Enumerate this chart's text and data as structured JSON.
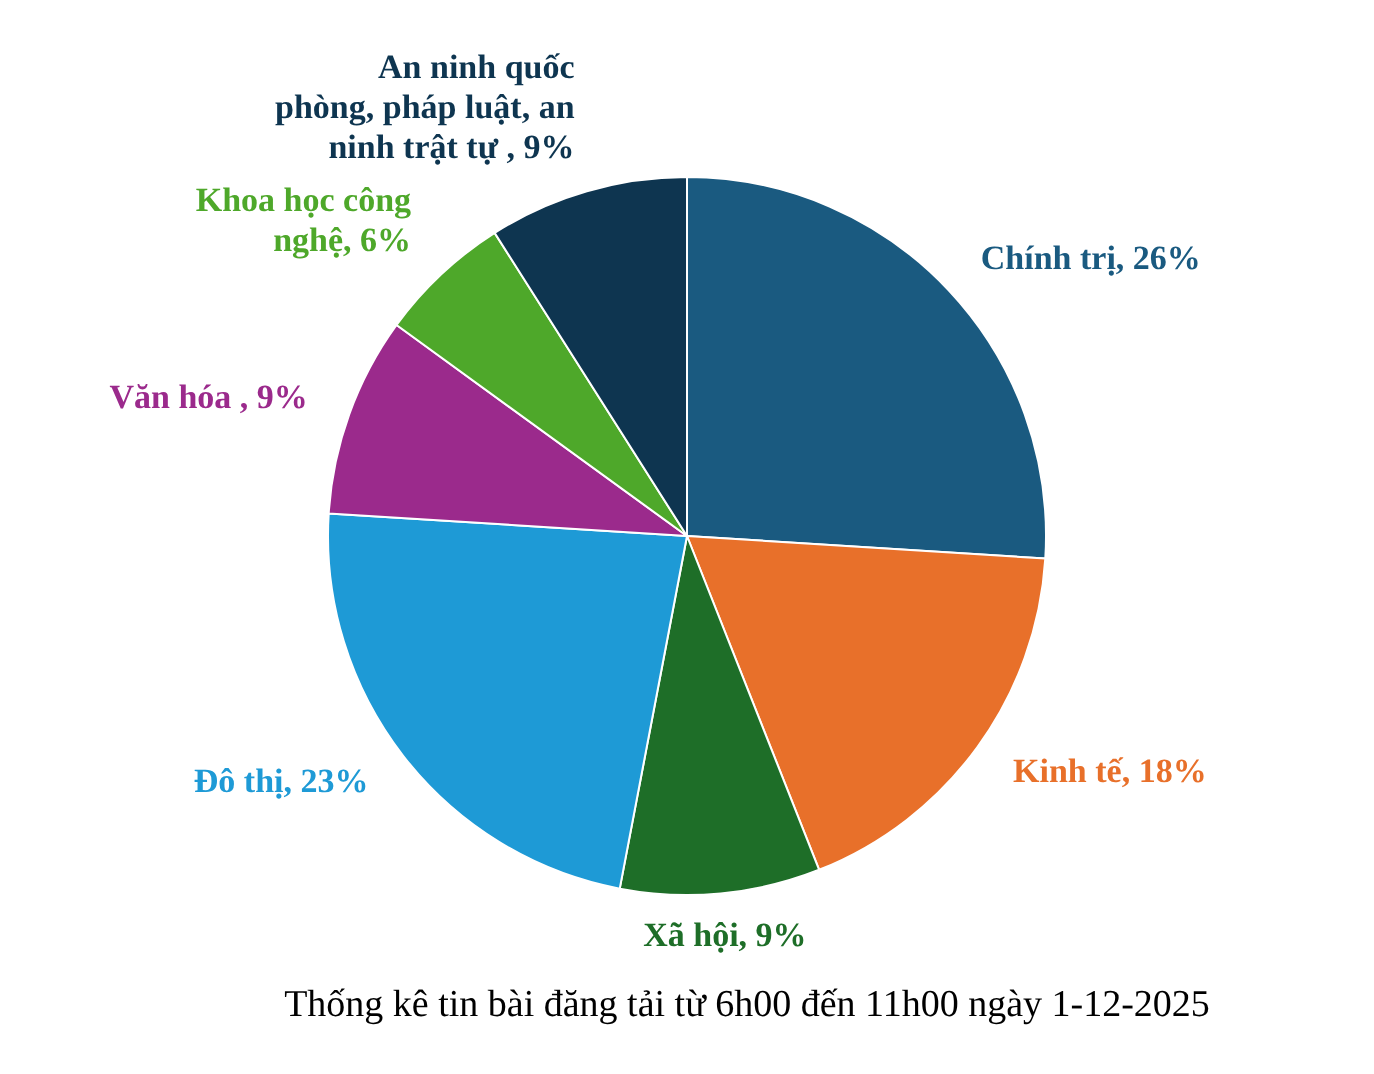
{
  "chart_data": {
    "type": "pie",
    "title": "Thống kê tin bài đăng tải từ 6h00 đến 11h00 ngày 1-12-2025",
    "categories": [
      "Chính trị",
      "Kinh tế",
      "Xã hội",
      "Đô thị",
      "Văn hóa ",
      "Khoa học công nghệ",
      "An ninh quốc phòng, pháp luật, an ninh trật tự "
    ],
    "values": [
      26,
      18,
      9,
      23,
      9,
      6,
      9
    ],
    "value_labels": [
      "26%",
      "18%",
      "9%",
      "23%",
      "9%",
      "6%",
      "9%"
    ],
    "colors": [
      "#1a5a80",
      "#e8702a",
      "#1e6e28",
      "#1e9ad6",
      "#9b2a8c",
      "#4ea82a",
      "#0e3550"
    ],
    "legend": false
  }
}
